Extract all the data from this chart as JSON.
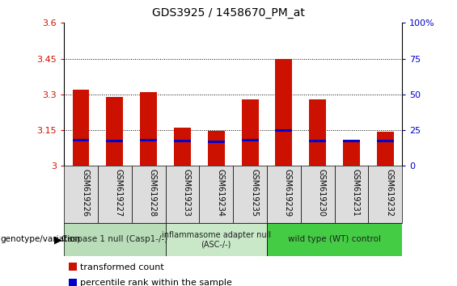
{
  "title": "GDS3925 / 1458670_PM_at",
  "samples": [
    "GSM619226",
    "GSM619227",
    "GSM619228",
    "GSM619233",
    "GSM619234",
    "GSM619235",
    "GSM619229",
    "GSM619230",
    "GSM619231",
    "GSM619232"
  ],
  "red_values": [
    3.32,
    3.29,
    3.31,
    3.16,
    3.148,
    3.28,
    3.45,
    3.28,
    3.105,
    3.145
  ],
  "blue_values": [
    3.108,
    3.105,
    3.108,
    3.103,
    3.101,
    3.107,
    3.15,
    3.104,
    3.103,
    3.104
  ],
  "ymin": 3.0,
  "ymax": 3.6,
  "yticks": [
    3.0,
    3.15,
    3.3,
    3.45,
    3.6
  ],
  "ytick_labels": [
    "3",
    "3.15",
    "3.3",
    "3.45",
    "3.6"
  ],
  "right_yticks": [
    0,
    25,
    50,
    75,
    100
  ],
  "right_ytick_labels": [
    "0",
    "25",
    "50",
    "75",
    "100%"
  ],
  "bar_color": "#cc1100",
  "blue_color": "#0000cc",
  "groups": [
    {
      "label": "Caspase 1 null (Casp1-/-)",
      "start": 0,
      "end": 3,
      "color": "#b8ddb8"
    },
    {
      "label": "inflammasome adapter null\n(ASC-/-)",
      "start": 3,
      "end": 6,
      "color": "#c8e8c8"
    },
    {
      "label": "wild type (WT) control",
      "start": 6,
      "end": 10,
      "color": "#44cc44"
    }
  ],
  "bar_width": 0.5,
  "legend_items": [
    {
      "label": "transformed count",
      "color": "#cc1100"
    },
    {
      "label": "percentile rank within the sample",
      "color": "#0000cc"
    }
  ],
  "left_label_color": "#cc1100",
  "right_label_color": "#0000cc",
  "genotype_label": "genotype/variation"
}
